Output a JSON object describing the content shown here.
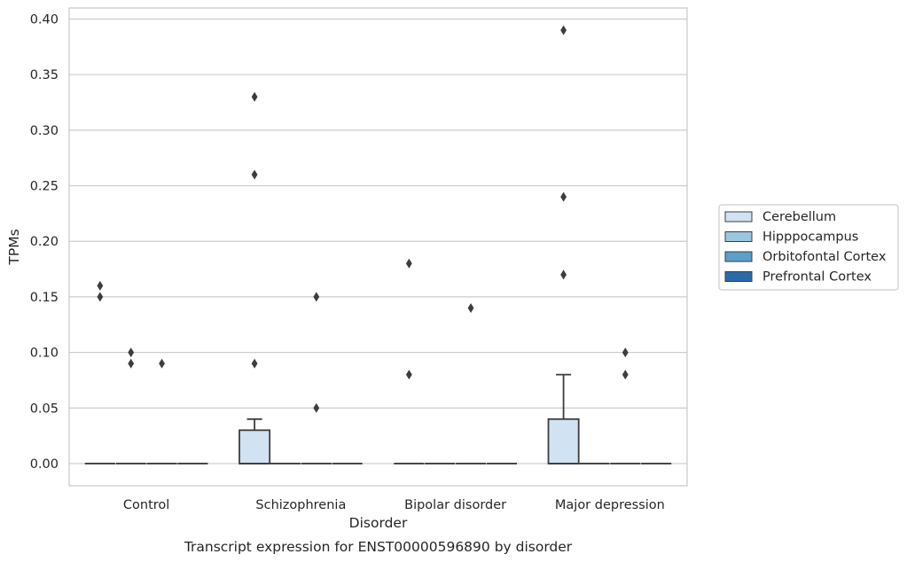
{
  "chart_data": {
    "type": "box",
    "xlabel": "Disorder",
    "ylabel": "TPMs",
    "caption": "Transcript expression for ENST00000596890 by disorder",
    "ylim": [
      -0.02,
      0.41
    ],
    "yticks": [
      "0.00",
      "0.05",
      "0.10",
      "0.15",
      "0.20",
      "0.25",
      "0.30",
      "0.35",
      "0.40"
    ],
    "ytick_values": [
      0,
      0.05,
      0.1,
      0.15,
      0.2,
      0.25,
      0.3,
      0.35,
      0.4
    ],
    "grid": "horizontal",
    "legend_position": "right",
    "categories": [
      "Control",
      "Schizophrenia",
      "Bipolar disorder",
      "Major depression"
    ],
    "series": [
      {
        "name": "Cerebellum",
        "color": "#d1e2f2",
        "boxes": [
          {
            "q1": 0,
            "median": 0,
            "q3": 0,
            "whisker_low": 0,
            "whisker_high": 0,
            "outliers": [
              0.15,
              0.16
            ]
          },
          {
            "q1": 0,
            "median": 0,
            "q3": 0.03,
            "whisker_low": 0,
            "whisker_high": 0.04,
            "outliers": [
              0.09,
              0.26,
              0.33
            ]
          },
          {
            "q1": 0,
            "median": 0,
            "q3": 0,
            "whisker_low": 0,
            "whisker_high": 0,
            "outliers": [
              0.08,
              0.18
            ]
          },
          {
            "q1": 0,
            "median": 0,
            "q3": 0.04,
            "whisker_low": 0,
            "whisker_high": 0.08,
            "outliers": [
              0.17,
              0.24,
              0.39
            ]
          }
        ]
      },
      {
        "name": "Hipppocampus",
        "color": "#9ac7e0",
        "boxes": [
          {
            "q1": 0,
            "median": 0,
            "q3": 0,
            "whisker_low": 0,
            "whisker_high": 0,
            "outliers": [
              0.09,
              0.1
            ]
          },
          {
            "q1": 0,
            "median": 0,
            "q3": 0,
            "whisker_low": 0,
            "whisker_high": 0,
            "outliers": []
          },
          {
            "q1": 0,
            "median": 0,
            "q3": 0,
            "whisker_low": 0,
            "whisker_high": 0,
            "outliers": []
          },
          {
            "q1": 0,
            "median": 0,
            "q3": 0,
            "whisker_low": 0,
            "whisker_high": 0,
            "outliers": []
          }
        ]
      },
      {
        "name": "Orbitofontal Cortex",
        "color": "#5a9fcc",
        "boxes": [
          {
            "q1": 0,
            "median": 0,
            "q3": 0,
            "whisker_low": 0,
            "whisker_high": 0,
            "outliers": [
              0.09
            ]
          },
          {
            "q1": 0,
            "median": 0,
            "q3": 0,
            "whisker_low": 0,
            "whisker_high": 0,
            "outliers": [
              0.05,
              0.15
            ]
          },
          {
            "q1": 0,
            "median": 0,
            "q3": 0,
            "whisker_low": 0,
            "whisker_high": 0,
            "outliers": [
              0.14
            ]
          },
          {
            "q1": 0,
            "median": 0,
            "q3": 0,
            "whisker_low": 0,
            "whisker_high": 0,
            "outliers": [
              0.08,
              0.1
            ]
          }
        ]
      },
      {
        "name": "Prefrontal Cortex",
        "color": "#2a6aab",
        "boxes": [
          {
            "q1": 0,
            "median": 0,
            "q3": 0,
            "whisker_low": 0,
            "whisker_high": 0,
            "outliers": []
          },
          {
            "q1": 0,
            "median": 0,
            "q3": 0,
            "whisker_low": 0,
            "whisker_high": 0,
            "outliers": []
          },
          {
            "q1": 0,
            "median": 0,
            "q3": 0,
            "whisker_low": 0,
            "whisker_high": 0,
            "outliers": []
          },
          {
            "q1": 0,
            "median": 0,
            "q3": 0,
            "whisker_low": 0,
            "whisker_high": 0,
            "outliers": []
          }
        ]
      }
    ]
  }
}
